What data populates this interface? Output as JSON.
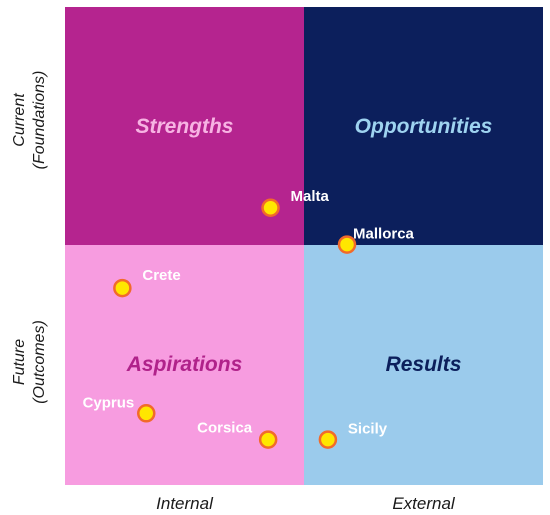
{
  "quadrants": {
    "top_left": {
      "title": "Strengths",
      "fill": "#b5248f",
      "title_color": "#f7b3e3"
    },
    "top_right": {
      "title": "Opportunities",
      "fill": "#0c1f5c",
      "title_color": "#9ed3f0"
    },
    "bottom_left": {
      "title": "Aspirations",
      "fill": "#f79ce0",
      "title_color": "#b0228a"
    },
    "bottom_right": {
      "title": "Results",
      "fill": "#9bcbec",
      "title_color": "#0c1f5c"
    }
  },
  "axes": {
    "x_left": "Internal",
    "x_right": "External",
    "y_top": [
      "Current",
      "(Foundations)"
    ],
    "y_bottom": [
      "Future",
      "(Outcomes)"
    ]
  },
  "colors": {
    "point_fill": "#ffe600",
    "point_stroke": "#f26a2a",
    "point_label": "#ffffff"
  },
  "chart_data": {
    "type": "scatter",
    "xlim": [
      0,
      1
    ],
    "ylim": [
      0,
      1
    ],
    "points": [
      {
        "label": "Malta",
        "x": 0.43,
        "y": 0.58
      },
      {
        "label": "Mallorca",
        "x": 0.59,
        "y": 0.503
      },
      {
        "label": "Crete",
        "x": 0.12,
        "y": 0.412
      },
      {
        "label": "Cyprus",
        "x": 0.17,
        "y": 0.15
      },
      {
        "label": "Corsica",
        "x": 0.425,
        "y": 0.095
      },
      {
        "label": "Sicily",
        "x": 0.55,
        "y": 0.095
      }
    ]
  }
}
